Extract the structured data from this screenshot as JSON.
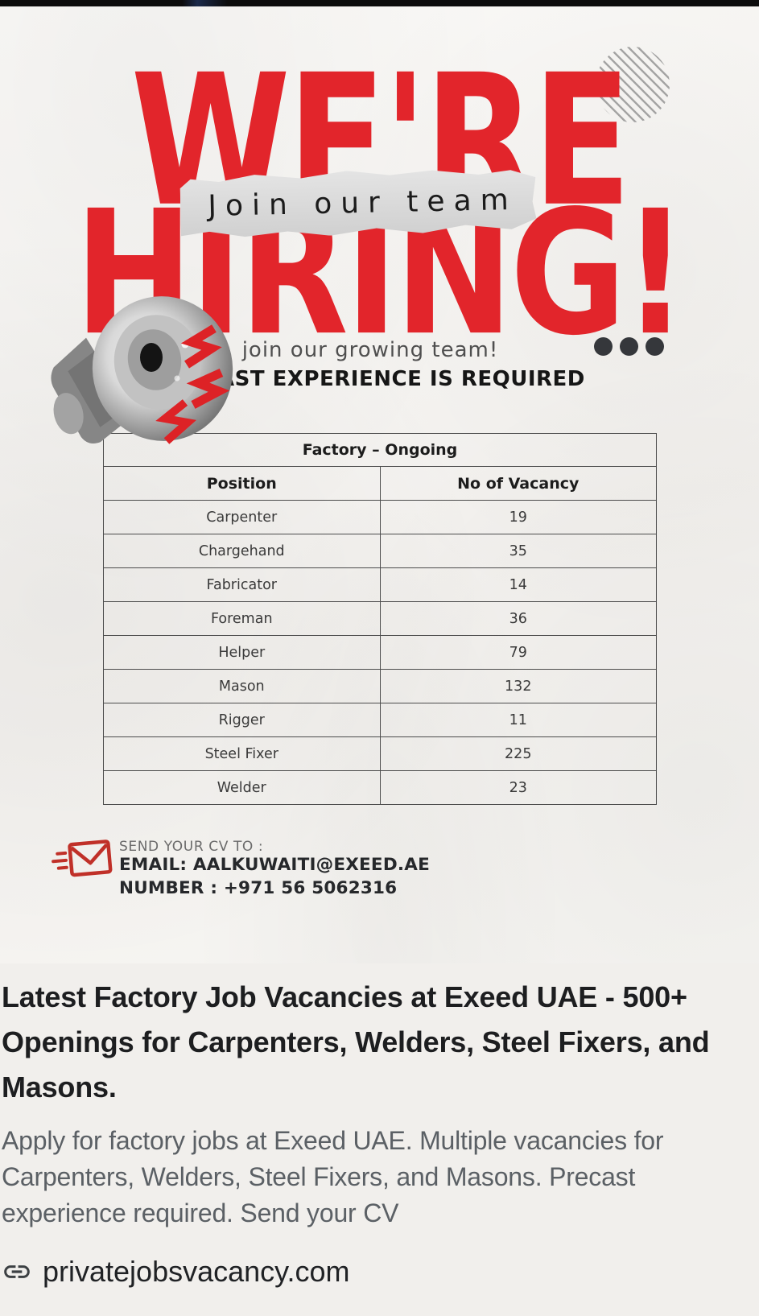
{
  "poster": {
    "headline_top": "WE'RE",
    "banner_label": "Join our team",
    "headline_bottom": "HIRING!",
    "tagline": "join our growing team!",
    "requirement": "PRECAST EXPERIENCE IS REQUIRED",
    "table": {
      "title": "Factory – Ongoing",
      "columns": [
        "Position",
        "No of Vacancy"
      ],
      "rows": [
        [
          "Carpenter",
          "19"
        ],
        [
          "Chargehand",
          "35"
        ],
        [
          "Fabricator",
          "14"
        ],
        [
          "Foreman",
          "36"
        ],
        [
          "Helper",
          "79"
        ],
        [
          "Mason",
          "132"
        ],
        [
          "Rigger",
          "11"
        ],
        [
          "Steel Fixer",
          "225"
        ],
        [
          "Welder",
          "23"
        ]
      ]
    },
    "contact": {
      "send_label": "SEND YOUR CV TO :",
      "email_line": "EMAIL: AALKUWAITI@EXEED.AE",
      "number_line": "NUMBER : +971 56 5062316"
    },
    "colors": {
      "accent_red": "#e2252b",
      "banner_gray": "#d9d9d9",
      "envelope_red": "#c03028"
    },
    "icons": {
      "megaphone": "megaphone-icon",
      "lightning": "lightning-bolt-icon",
      "ellipsis": "ellipsis-dots",
      "envelope": "envelope-icon",
      "stripes": "striped-circle-decoration"
    }
  },
  "article": {
    "title": "Latest Factory Job Vacancies at Exeed UAE - 500+ Openings for Carpenters, Welders, Steel Fixers, and Masons.",
    "description": "Apply for factory jobs at Exeed UAE. Multiple vacancies for Carpenters, Welders, Steel Fixers, and Masons. Precast experience required. Send your CV",
    "source_domain": "privatejobsvacancy.com",
    "icons": {
      "link": "link-icon"
    }
  }
}
